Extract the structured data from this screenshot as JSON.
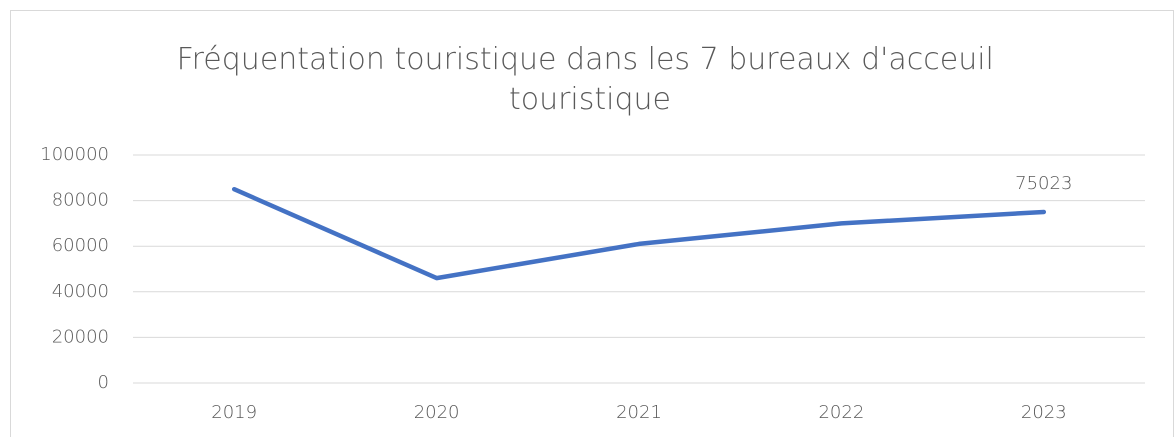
{
  "chart_data": {
    "type": "line",
    "title": "Fréquentation touristique dans les 7 bureaux d'acceuil touristique",
    "categories": [
      "2019",
      "2020",
      "2021",
      "2022",
      "2023"
    ],
    "values": [
      85000,
      46000,
      61000,
      70000,
      75023
    ],
    "value_labels": [
      null,
      null,
      null,
      null,
      "75023"
    ],
    "color": "#4472c4",
    "ylim": [
      0,
      100000
    ],
    "yticks": [
      0,
      20000,
      40000,
      60000,
      80000,
      100000
    ],
    "grid": true
  }
}
